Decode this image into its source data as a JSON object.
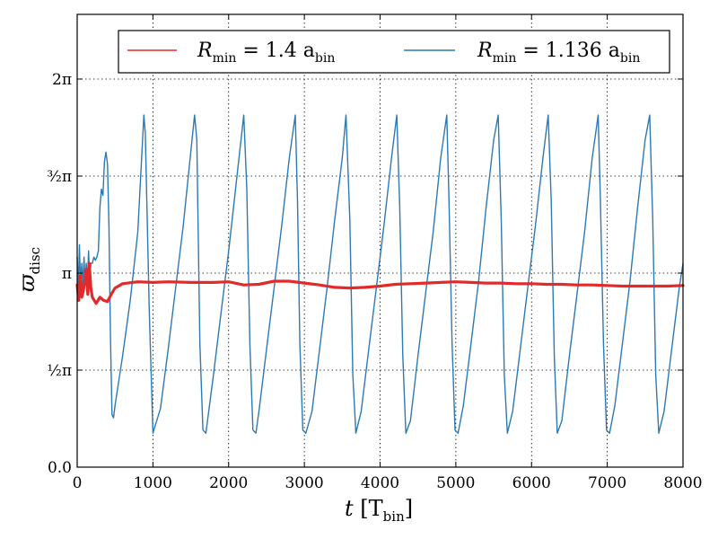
{
  "chart_data": {
    "type": "line",
    "xlabel_main": "t",
    "xlabel_unit": "[T",
    "xlabel_unit_sub": "bin",
    "xlabel_close": "]",
    "ylabel_main": "ϖ",
    "ylabel_sub": "disc",
    "xlim": [
      0,
      8000
    ],
    "ylim": [
      0,
      7.33
    ],
    "x_ticks": [
      0,
      1000,
      2000,
      3000,
      4000,
      5000,
      6000,
      7000,
      8000
    ],
    "x_tick_labels": [
      "0",
      "1000",
      "2000",
      "3000",
      "4000",
      "5000",
      "6000",
      "7000",
      "8000"
    ],
    "y_ticks": [
      0,
      1.5708,
      3.1416,
      4.7124,
      6.2832
    ],
    "y_tick_labels": [
      "0.0",
      "½π",
      "π",
      "³⁄₂π",
      "2π"
    ],
    "grid": true,
    "legend_position": "top-right",
    "series": [
      {
        "name": "R_min = 1.4 a_bin",
        "legend_main": "R",
        "legend_sub": "min",
        "legend_rest": " = 1.4 a",
        "legend_sub2": "bin",
        "color": "#e32a2a",
        "x": [
          0,
          20,
          40,
          60,
          80,
          100,
          120,
          140,
          160,
          180,
          200,
          250,
          300,
          350,
          400,
          450,
          500,
          600,
          800,
          1000,
          1200,
          1500,
          1800,
          2000,
          2200,
          2400,
          2600,
          2800,
          3000,
          3200,
          3400,
          3600,
          3800,
          4000,
          4200,
          4400,
          4600,
          4800,
          5000,
          5200,
          5400,
          5600,
          5800,
          6000,
          6200,
          6400,
          6600,
          6800,
          7000,
          7200,
          7400,
          7600,
          7800,
          8000
        ],
        "y": [
          2.95,
          2.7,
          3.1,
          2.75,
          2.85,
          3.0,
          3.2,
          2.8,
          3.3,
          2.9,
          2.75,
          2.65,
          2.75,
          2.7,
          2.68,
          2.8,
          2.9,
          2.97,
          3.0,
          2.99,
          3.0,
          2.99,
          2.99,
          3.0,
          2.95,
          2.96,
          3.01,
          3.01,
          2.98,
          2.95,
          2.91,
          2.9,
          2.91,
          2.93,
          2.96,
          2.97,
          2.98,
          2.99,
          3.0,
          2.99,
          2.98,
          2.98,
          2.97,
          2.97,
          2.96,
          2.96,
          2.95,
          2.95,
          2.94,
          2.93,
          2.93,
          2.93,
          2.93,
          2.94
        ]
      },
      {
        "name": "R_min = 1.136 a_bin",
        "legend_main": "R",
        "legend_sub": "min",
        "legend_rest": " = 1.136 a",
        "legend_sub2": "bin",
        "color": "#2c79b3",
        "x": [
          0,
          15,
          30,
          45,
          60,
          75,
          90,
          105,
          120,
          135,
          150,
          165,
          180,
          200,
          220,
          240,
          260,
          280,
          300,
          320,
          340,
          360,
          380,
          400,
          420,
          440,
          460,
          480,
          500,
          600,
          700,
          800,
          880,
          900,
          950,
          1000,
          1100,
          1200,
          1300,
          1400,
          1550,
          1580,
          1620,
          1660,
          1700,
          1800,
          1900,
          2000,
          2100,
          2200,
          2240,
          2280,
          2320,
          2360,
          2400,
          2500,
          2600,
          2700,
          2800,
          2880,
          2910,
          2940,
          2980,
          3020,
          3100,
          3200,
          3300,
          3400,
          3500,
          3550,
          3600,
          3640,
          3680,
          3750,
          3850,
          3950,
          4050,
          4150,
          4220,
          4260,
          4300,
          4340,
          4400,
          4500,
          4600,
          4700,
          4800,
          4880,
          4910,
          4950,
          4990,
          5030,
          5100,
          5200,
          5300,
          5400,
          5500,
          5560,
          5600,
          5640,
          5680,
          5750,
          5850,
          5950,
          6050,
          6150,
          6220,
          6260,
          6300,
          6340,
          6400,
          6500,
          6600,
          6700,
          6800,
          6880,
          6910,
          6950,
          6990,
          7030,
          7100,
          7200,
          7300,
          7400,
          7500,
          7560,
          7600,
          7640,
          7680,
          7750,
          7850,
          7950,
          8000
        ],
        "y": [
          3.4,
          2.9,
          3.6,
          2.9,
          3.3,
          2.9,
          3.4,
          2.95,
          3.3,
          3.0,
          3.5,
          3.0,
          3.3,
          3.3,
          3.4,
          3.35,
          3.4,
          3.5,
          4.2,
          4.5,
          4.4,
          4.95,
          5.1,
          4.9,
          3.9,
          2.1,
          0.85,
          0.8,
          1.0,
          1.8,
          2.7,
          3.8,
          5.7,
          5.4,
          2.6,
          0.55,
          0.95,
          1.9,
          2.9,
          3.9,
          5.7,
          5.3,
          2.0,
          0.6,
          0.55,
          1.5,
          2.5,
          3.5,
          4.6,
          5.7,
          4.5,
          2.0,
          0.6,
          0.55,
          0.9,
          1.9,
          2.9,
          3.9,
          5.0,
          5.7,
          4.3,
          2.0,
          0.6,
          0.55,
          0.9,
          1.9,
          2.9,
          4.0,
          5.0,
          5.7,
          4.0,
          1.5,
          0.55,
          0.9,
          1.9,
          2.9,
          3.9,
          5.0,
          5.7,
          4.2,
          1.8,
          0.55,
          0.75,
          1.8,
          2.8,
          3.8,
          5.0,
          5.7,
          4.3,
          2.0,
          0.6,
          0.55,
          1.0,
          2.0,
          3.0,
          4.2,
          5.3,
          5.7,
          4.0,
          1.5,
          0.55,
          0.9,
          1.9,
          2.9,
          3.9,
          5.0,
          5.7,
          4.3,
          1.8,
          0.55,
          0.75,
          1.8,
          2.8,
          3.8,
          5.0,
          5.7,
          4.3,
          2.0,
          0.6,
          0.55,
          1.0,
          2.0,
          3.0,
          4.2,
          5.3,
          5.7,
          4.0,
          1.5,
          0.55,
          0.9,
          1.9,
          2.9,
          3.3
        ]
      }
    ]
  }
}
